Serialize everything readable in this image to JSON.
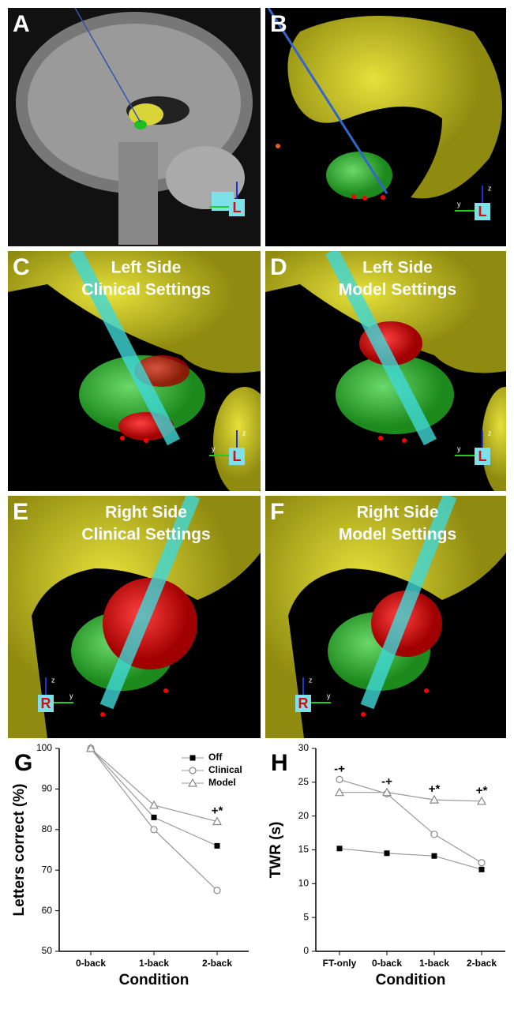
{
  "panels": [
    {
      "label": "A",
      "gizmo": {
        "label": "L"
      }
    },
    {
      "label": "B",
      "gizmo": {
        "label": "L",
        "z": "z",
        "y": "y"
      }
    },
    {
      "label": "C",
      "lines": [
        "Left Side",
        "Clinical Settings"
      ],
      "gizmo": {
        "label": "L",
        "z": "z",
        "y": "y"
      }
    },
    {
      "label": "D",
      "lines": [
        "Left Side",
        "Model Settings"
      ],
      "gizmo": {
        "label": "L",
        "z": "z",
        "y": "y"
      }
    },
    {
      "label": "E",
      "lines": [
        "Right Side",
        "Clinical Settings"
      ],
      "gizmo": {
        "label": "R",
        "z": "z",
        "y": "y"
      }
    },
    {
      "label": "F",
      "lines": [
        "Right Side",
        "Model Settings"
      ],
      "gizmo": {
        "label": "R",
        "z": "z",
        "y": "y"
      }
    }
  ],
  "chart_data": [
    {
      "type": "line",
      "panel_label": "G",
      "y_label": "Letters correct (%)",
      "x_label": "Condition",
      "categories": [
        "0-back",
        "1-back",
        "2-back"
      ],
      "series": [
        {
          "name": "Off",
          "color": "#000000",
          "marker": "square",
          "values": [
            100,
            83,
            76
          ]
        },
        {
          "name": "Clinical",
          "color": "#888888",
          "marker": "circle",
          "values": [
            100,
            80,
            65
          ]
        },
        {
          "name": "Model",
          "color": "#888888",
          "marker": "triangle",
          "values": [
            100,
            86,
            82
          ]
        }
      ],
      "annotations": [
        null,
        null,
        "+*"
      ],
      "ylim": [
        50,
        100
      ],
      "yticks": [
        50,
        60,
        70,
        80,
        90,
        100
      ],
      "legend": "top-right"
    },
    {
      "type": "line",
      "panel_label": "H",
      "y_label": "TWR (s)",
      "x_label": "Condition",
      "categories": [
        "FT-only",
        "0-back",
        "1-back",
        "2-back"
      ],
      "series": [
        {
          "name": "Off",
          "color": "#000000",
          "marker": "square",
          "values": [
            15.2,
            14.5,
            14.1,
            12.1
          ]
        },
        {
          "name": "Clinical",
          "color": "#888888",
          "marker": "circle",
          "values": [
            25.4,
            23.3,
            17.3,
            13.1
          ]
        },
        {
          "name": "Model",
          "color": "#888888",
          "marker": "triangle",
          "values": [
            23.5,
            23.5,
            22.4,
            22.2
          ]
        }
      ],
      "annotations": [
        "-+",
        "-+",
        "+*",
        "+*"
      ],
      "ylim": [
        0,
        30
      ],
      "yticks": [
        0,
        5,
        10,
        15,
        20,
        25,
        30
      ]
    }
  ]
}
